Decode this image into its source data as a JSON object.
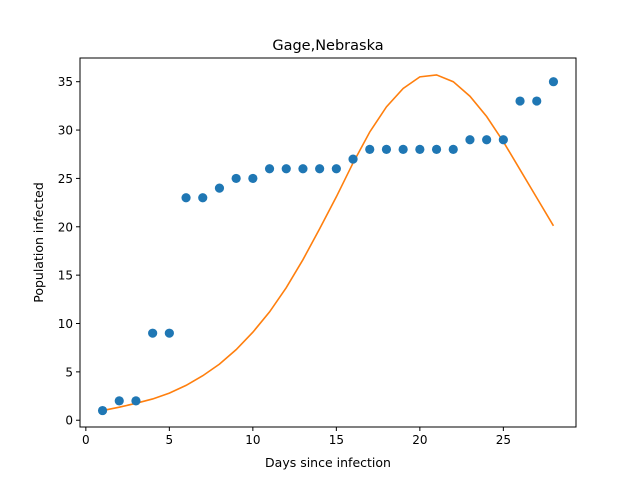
{
  "chart_data": {
    "type": "scatter",
    "title": "Gage,Nebraska",
    "xlabel": "Days since infection",
    "ylabel": "Population infected",
    "xlim": [
      -0.35,
      29.35
    ],
    "ylim": [
      -0.7,
      37.45
    ],
    "xticks": [
      0,
      5,
      10,
      15,
      20,
      25
    ],
    "yticks": [
      0,
      5,
      10,
      15,
      20,
      25,
      30,
      35
    ],
    "grid": false,
    "series": [
      {
        "kind": "scatter",
        "color": "#1f77b4",
        "x": [
          1,
          2,
          3,
          4,
          5,
          6,
          7,
          8,
          9,
          10,
          11,
          12,
          13,
          14,
          15,
          16,
          17,
          18,
          19,
          20,
          21,
          22,
          23,
          24,
          25,
          26,
          27,
          28
        ],
        "y": [
          1,
          2,
          2,
          9,
          9,
          23,
          23,
          24,
          25,
          25,
          26,
          26,
          26,
          26,
          26,
          27,
          28,
          28,
          28,
          28,
          28,
          28,
          29,
          29,
          29,
          33,
          33,
          35
        ]
      },
      {
        "kind": "line",
        "color": "#ff7f0e",
        "x": [
          1,
          2,
          3,
          4,
          5,
          6,
          7,
          8,
          9,
          10,
          11,
          12,
          13,
          14,
          15,
          16,
          17,
          18,
          19,
          20,
          21,
          22,
          23,
          24,
          25,
          26,
          27,
          28
        ],
        "y": [
          1.0,
          1.35,
          1.75,
          2.2,
          2.8,
          3.6,
          4.6,
          5.8,
          7.3,
          9.1,
          11.2,
          13.7,
          16.6,
          19.8,
          23.1,
          26.6,
          29.8,
          32.4,
          34.3,
          35.5,
          35.7,
          35.0,
          33.5,
          31.4,
          28.8,
          25.9,
          23.0,
          20.1
        ]
      }
    ]
  }
}
